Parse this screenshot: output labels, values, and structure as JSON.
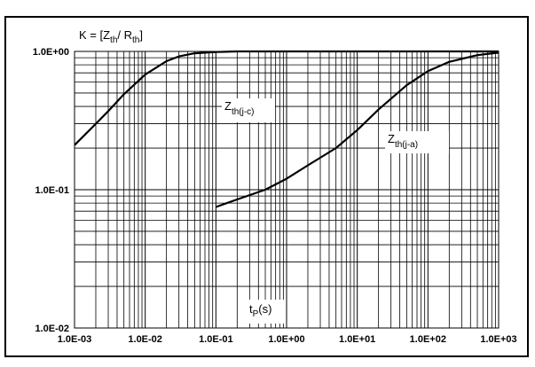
{
  "chart_data": {
    "type": "line",
    "x_scale": "log",
    "y_scale": "log",
    "xlim": [
      0.001,
      1000
    ],
    "ylim": [
      0.01,
      1
    ],
    "grid": true,
    "x_ticks": [
      "1.0E-03",
      "1.0E-02",
      "1.0E-01",
      "1.0E+00",
      "1.0E+01",
      "1.0E+02",
      "1.0E+03"
    ],
    "y_ticks": [
      "1.0E+00",
      "1.0E-01",
      "1.0E-02"
    ],
    "ylabel": {
      "prefix": "K = [Z",
      "sub1": "th",
      "mid": "/ R",
      "sub2": "th",
      "suffix": "]"
    },
    "xlabel": {
      "main": "t",
      "sub": "P",
      "suffix": "(s)"
    },
    "series": [
      {
        "name": {
          "main": "Z",
          "sub": "th(j-c)"
        },
        "x": [
          0.001,
          0.002,
          0.003,
          0.005,
          0.01,
          0.02,
          0.03,
          0.05,
          0.1,
          0.2,
          1,
          1000
        ],
        "y": [
          0.21,
          0.3,
          0.37,
          0.49,
          0.68,
          0.85,
          0.92,
          0.97,
          0.99,
          1.0,
          1.0,
          1.0
        ]
      },
      {
        "name": {
          "main": "Z",
          "sub": "th(j-a)"
        },
        "x": [
          0.1,
          0.2,
          0.5,
          1,
          2,
          5,
          10,
          20,
          50,
          100,
          200,
          500,
          1000
        ],
        "y": [
          0.075,
          0.085,
          0.1,
          0.12,
          0.15,
          0.2,
          0.27,
          0.38,
          0.57,
          0.72,
          0.84,
          0.94,
          0.98
        ]
      }
    ]
  }
}
